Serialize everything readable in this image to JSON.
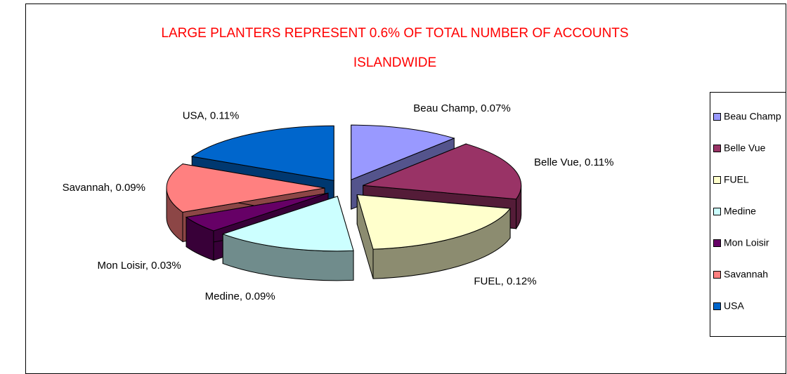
{
  "chart_data": {
    "type": "pie3d",
    "title": [
      "LARGE PLANTERS REPRESENT 0.6% OF TOTAL NUMBER OF ACCOUNTS",
      "ISLANDWIDE"
    ],
    "categories": [
      "Beau Champ",
      "Belle Vue",
      "FUEL",
      "Medine",
      "Mon Loisir",
      "Savannah",
      "USA"
    ],
    "values": [
      0.07,
      0.11,
      0.12,
      0.09,
      0.03,
      0.09,
      0.11
    ],
    "value_labels": [
      "Beau Champ, 0.07%",
      "Belle Vue, 0.11%",
      "FUEL, 0.12%",
      "Medine, 0.09%",
      "Mon Loisir, 0.03%",
      "Savannah, 0.09%",
      "USA, 0.11%"
    ],
    "colors": [
      "#9999ff",
      "#993366",
      "#ffffcc",
      "#ccffff",
      "#660066",
      "#ff8080",
      "#0066cc"
    ],
    "legend": "right"
  }
}
